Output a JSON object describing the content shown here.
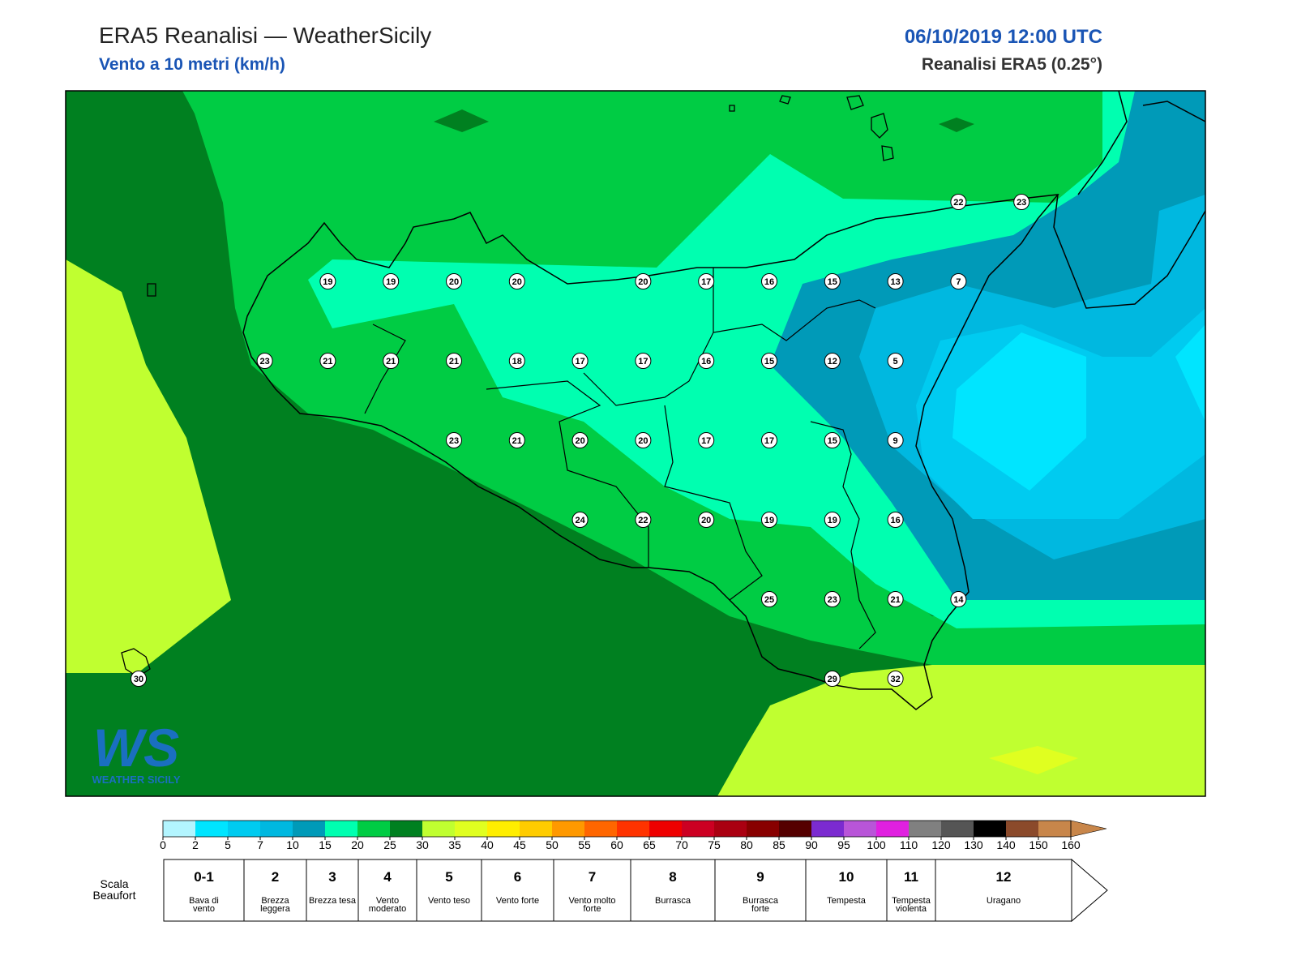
{
  "header": {
    "title": "ERA5 Reanalisi — WeatherSicily",
    "subtitle": "Vento a 10 metri (km/h)",
    "datetime": "06/10/2019 12:00 UTC",
    "source": "Reanalisi ERA5 (0.25°)"
  },
  "map": {
    "points": [
      22,
      23,
      19,
      19,
      20,
      20,
      20,
      17,
      16,
      15,
      13,
      7,
      23,
      21,
      21,
      21,
      18,
      17,
      17,
      16,
      15,
      12,
      5,
      23,
      21,
      20,
      20,
      17,
      17,
      15,
      9,
      24,
      22,
      20,
      19,
      19,
      16,
      25,
      23,
      21,
      14,
      30,
      29,
      32
    ]
  },
  "logo": {
    "mark": "WS",
    "text": "WEATHER SICILY"
  },
  "colorbar": {
    "ticks": [
      0,
      2,
      5,
      7,
      10,
      15,
      20,
      25,
      30,
      35,
      40,
      45,
      50,
      55,
      60,
      65,
      70,
      75,
      80,
      85,
      90,
      95,
      100,
      110,
      120,
      130,
      140,
      150,
      160
    ],
    "colors": [
      "#b3f5ff",
      "#00e5ff",
      "#00cbf0",
      "#00b8e0",
      "#009ab8",
      "#00ffb0",
      "#00cc44",
      "#008020",
      "#c0ff30",
      "#e0ff20",
      "#ffee00",
      "#ffcc00",
      "#ff9900",
      "#ff6600",
      "#ff3300",
      "#ee0000",
      "#cc0022",
      "#aa0011",
      "#880000",
      "#550000",
      "#7b2bd0",
      "#b855d8",
      "#e020e0",
      "#808080",
      "#555555",
      "#000000",
      "#8b4a2b",
      "#c8864a"
    ]
  },
  "beaufort": {
    "label": "Scala Beaufort",
    "classes": [
      {
        "number": "0-1",
        "name": "Bava di vento"
      },
      {
        "number": "2",
        "name": "Brezza leggera"
      },
      {
        "number": "3",
        "name": "Brezza tesa"
      },
      {
        "number": "4",
        "name": "Vento moderato"
      },
      {
        "number": "5",
        "name": "Vento teso"
      },
      {
        "number": "6",
        "name": "Vento forte"
      },
      {
        "number": "7",
        "name": "Vento molto forte"
      },
      {
        "number": "8",
        "name": "Burrasca"
      },
      {
        "number": "9",
        "name": "Burrasca forte"
      },
      {
        "number": "10",
        "name": "Tempesta"
      },
      {
        "number": "11",
        "name": "Tempesta violenta"
      },
      {
        "number": "12",
        "name": "Uragano"
      }
    ]
  }
}
